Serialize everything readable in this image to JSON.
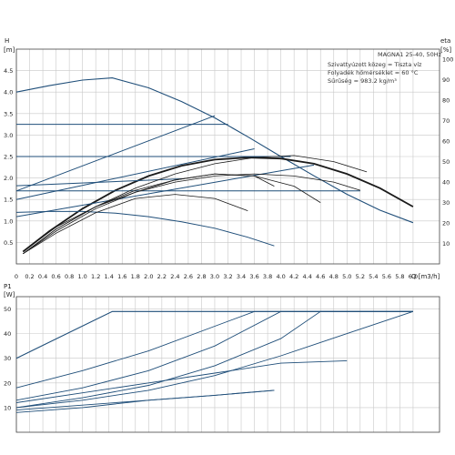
{
  "info": {
    "title": "MAGNA1 25-40, 50Hz",
    "lines": [
      "Szivattyúzott közeg = Tiszta víz",
      "Folyadék hőmérséklet = 60 °C",
      "Sűrűség = 983.2 kg/m³"
    ]
  },
  "axes": {
    "top_left_label": "H",
    "top_left_unit": "[m]",
    "top_right_label": "eta",
    "top_right_unit": "[%]",
    "bottom_left_label": "P1",
    "bottom_left_unit": "[W]",
    "x_label": "Q [m3/h]"
  },
  "colors": {
    "head_curve": "#1a1a1a",
    "efficiency_curve": "#1a1a1a",
    "power_curve": "#1f4e79",
    "control_line": "#1f4e79"
  },
  "chart_data": [
    {
      "type": "line",
      "panel": "head",
      "x_ticks": [
        "0",
        "0.2",
        "0.4",
        "0.6",
        "0.8",
        "1.0",
        "1.2",
        "1.4",
        "1.6",
        "1.8",
        "2.0",
        "2.2",
        "2.4",
        "2.6",
        "2.8",
        "3.0",
        "3.2",
        "3.4",
        "3.6",
        "3.8",
        "4.0",
        "4.2",
        "4.4",
        "4.6",
        "4.8",
        "5.0",
        "5.2",
        "5.4",
        "5.6",
        "5.8",
        "6.0"
      ],
      "y_ticks": [
        "0.5",
        "1.0",
        "1.5",
        "2.0",
        "2.5",
        "3.0",
        "3.5",
        "4.0",
        "4.5"
      ],
      "y2_ticks": [
        "10",
        "20",
        "30",
        "40",
        "50",
        "60",
        "70",
        "80",
        "90",
        "100"
      ],
      "xlim": [
        0,
        6.4
      ],
      "ylim": [
        0,
        5
      ],
      "y2lim": [
        0,
        105
      ],
      "grid": true,
      "series": [
        {
          "kind": "head-max",
          "x": [
            0,
            0.5,
            1,
            1.45,
            2,
            2.5,
            3,
            3.5,
            4,
            4.5,
            5,
            5.5,
            6
          ],
          "y": [
            4.0,
            4.15,
            4.28,
            4.33,
            4.1,
            3.78,
            3.4,
            2.96,
            2.5,
            2.05,
            1.62,
            1.25,
            0.96
          ]
        },
        {
          "kind": "eta-max",
          "x": [
            0.1,
            0.5,
            1,
            1.5,
            2,
            2.5,
            3,
            3.5,
            4,
            4.5,
            5,
            5.5,
            6
          ],
          "y2": [
            6,
            16,
            27,
            36,
            43,
            48,
            51,
            52,
            51.5,
            49,
            44,
            37,
            28
          ]
        },
        {
          "kind": "control",
          "x": [
            0,
            3.2
          ],
          "y": [
            3.25,
            3.25
          ]
        },
        {
          "kind": "control",
          "x": [
            0,
            4.15
          ],
          "y": [
            2.5,
            2.5
          ]
        },
        {
          "kind": "control",
          "x": [
            0,
            5.2
          ],
          "y": [
            1.7,
            1.7
          ]
        },
        {
          "kind": "control",
          "x": [
            0,
            3.0
          ],
          "y": [
            1.7,
            3.45
          ]
        },
        {
          "kind": "control",
          "x": [
            0,
            3.6
          ],
          "y": [
            1.5,
            2.68
          ]
        },
        {
          "kind": "control",
          "x": [
            0,
            4.5
          ],
          "y": [
            1.1,
            2.3
          ]
        },
        {
          "kind": "control",
          "x": [
            0,
            2.5
          ],
          "y": [
            1.82,
            1.98
          ]
        },
        {
          "kind": "head-curve",
          "x": [
            0,
            0.5,
            1,
            1.5,
            2,
            2.5,
            3,
            3.5,
            3.9
          ],
          "y": [
            1.2,
            1.22,
            1.22,
            1.18,
            1.1,
            0.98,
            0.83,
            0.62,
            0.42
          ]
        },
        {
          "kind": "eta-curve",
          "x": [
            0.1,
            0.6,
            1.2,
            1.8,
            2.4,
            3.0,
            3.6,
            4.2,
            4.8,
            5.2
          ],
          "y2": [
            6,
            18,
            28,
            35,
            40,
            43,
            44,
            43,
            40,
            36
          ]
        },
        {
          "kind": "eta-curve",
          "x": [
            0.1,
            0.6,
            1.2,
            1.8,
            2.4,
            3.0,
            3.6,
            4.2,
            4.8,
            5.3
          ],
          "y2": [
            5,
            17,
            28,
            37,
            44,
            49,
            52,
            53,
            50,
            45
          ]
        },
        {
          "kind": "eta-curve",
          "x": [
            0.1,
            0.6,
            1.2,
            1.8,
            2.4,
            3.0,
            3.6,
            4.2,
            4.6
          ],
          "y2": [
            5,
            17,
            28,
            36,
            41,
            44,
            43,
            38,
            30
          ]
        },
        {
          "kind": "eta-curve",
          "x": [
            0.1,
            0.6,
            1.2,
            1.8,
            2.4,
            3.0,
            3.5
          ],
          "y2": [
            5,
            15,
            25,
            32,
            34,
            32,
            26
          ]
        },
        {
          "kind": "eta-curve",
          "x": [
            0.1,
            0.6,
            1.2,
            1.8,
            2.4,
            3.0,
            3.6,
            3.9
          ],
          "y2": [
            5,
            16,
            27,
            35,
            41,
            44,
            43,
            38
          ]
        }
      ]
    },
    {
      "type": "line",
      "panel": "power",
      "y_ticks": [
        "10",
        "20",
        "30",
        "40",
        "50"
      ],
      "ylim": [
        0,
        55
      ],
      "grid": true,
      "series": [
        {
          "kind": "power-max",
          "x": [
            0,
            1.45,
            6.0
          ],
          "y": [
            30,
            49,
            49
          ]
        },
        {
          "kind": "power",
          "x": [
            0,
            1.0,
            2.0,
            3.0,
            3.6,
            6.0
          ],
          "y": [
            18,
            25,
            33,
            43,
            49,
            49
          ]
        },
        {
          "kind": "power",
          "x": [
            0,
            1.0,
            2.0,
            3.0,
            4.0,
            6.0
          ],
          "y": [
            13,
            18,
            25,
            35,
            49,
            49
          ]
        },
        {
          "kind": "power",
          "x": [
            0,
            1.0,
            2.0,
            3.0,
            4.0,
            4.6,
            6.0
          ],
          "y": [
            10,
            14,
            19,
            27,
            38,
            49,
            49
          ]
        },
        {
          "kind": "power",
          "x": [
            0,
            1.0,
            2.0,
            3.0,
            4.0,
            5.0,
            6.0
          ],
          "y": [
            10,
            13,
            17,
            23,
            31,
            40,
            49
          ]
        },
        {
          "kind": "power",
          "x": [
            0,
            1.0,
            2.0,
            3.0,
            4.0,
            5.0
          ],
          "y": [
            12,
            16,
            20,
            24,
            28,
            29
          ]
        },
        {
          "kind": "power",
          "x": [
            0,
            1.0,
            2.0,
            3.0,
            3.9
          ],
          "y": [
            8,
            10,
            13,
            15,
            17
          ]
        },
        {
          "kind": "power",
          "x": [
            0,
            1.0,
            2.0,
            3.0,
            3.9
          ],
          "y": [
            9,
            11,
            13,
            15,
            17
          ]
        }
      ]
    }
  ]
}
